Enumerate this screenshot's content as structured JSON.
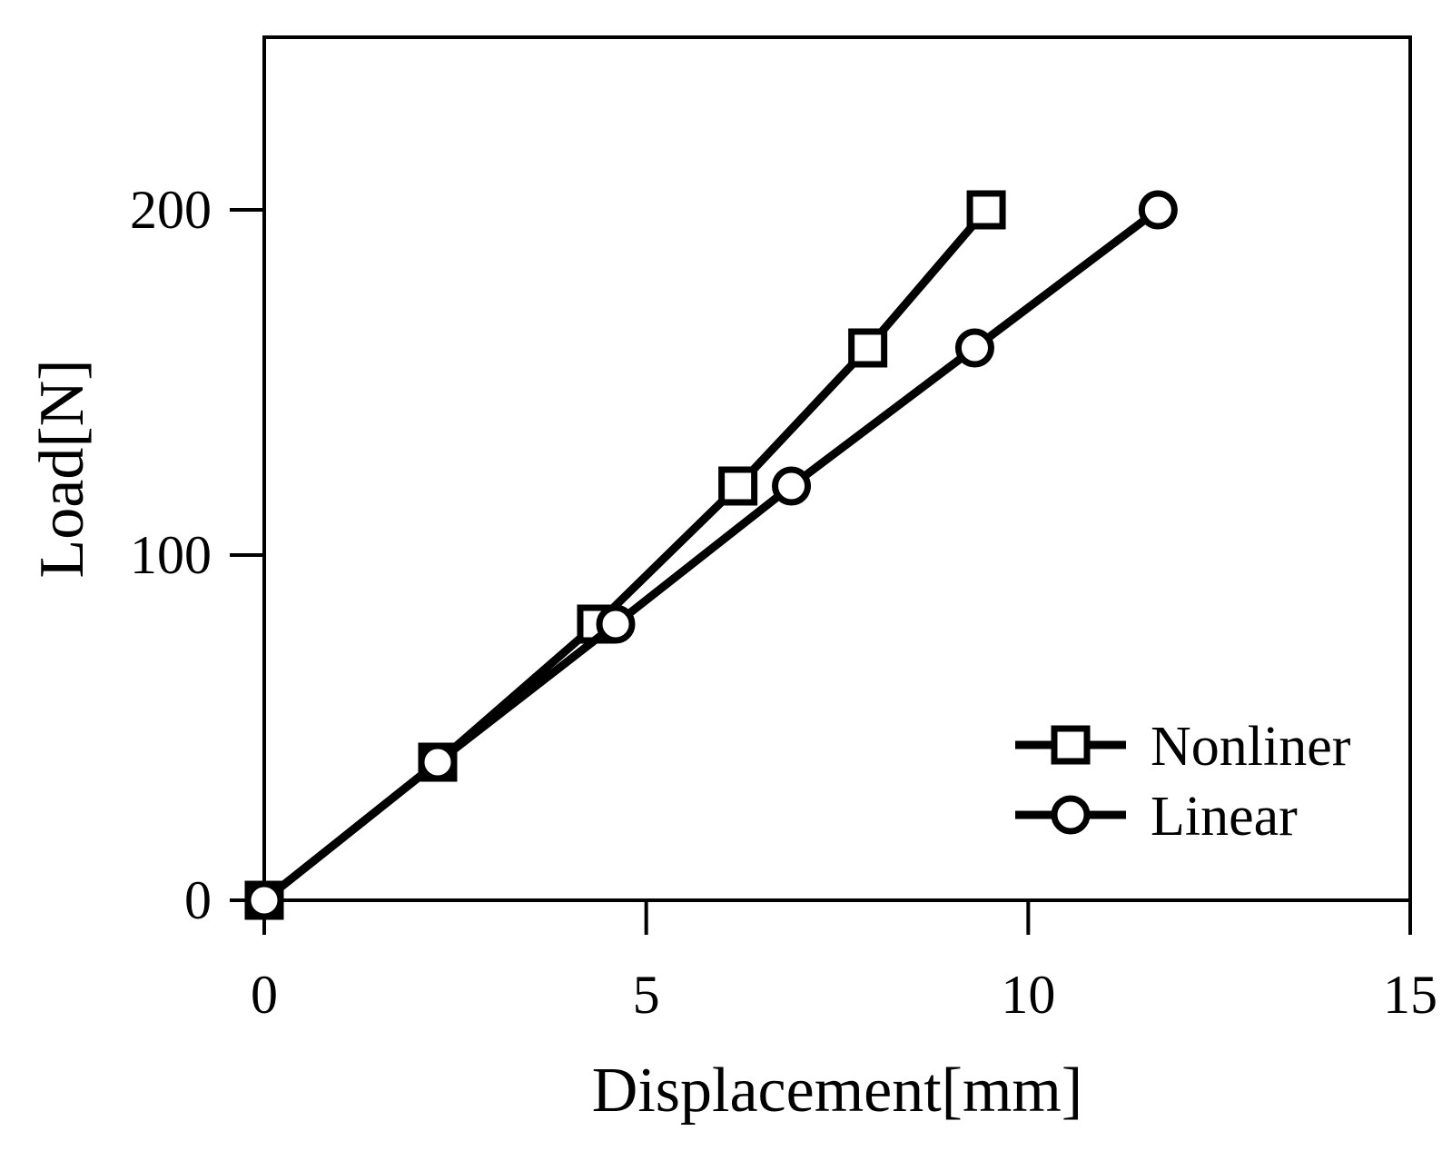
{
  "chart_data": {
    "type": "line",
    "title": "",
    "xlabel": "Displacement[mm]",
    "ylabel": "Load[N]",
    "xlim": [
      0,
      15
    ],
    "ylim": [
      0,
      250
    ],
    "xticks": [
      0,
      5,
      10,
      15
    ],
    "yticks": [
      0,
      100,
      200
    ],
    "grid": false,
    "legend_position": "bottom-right",
    "series": [
      {
        "name": "Nonliner",
        "marker": "square",
        "color": "#000000",
        "x": [
          0,
          2.27,
          4.35,
          6.2,
          7.9,
          9.45
        ],
        "y": [
          0,
          40,
          80,
          120,
          160,
          200
        ]
      },
      {
        "name": "Linear",
        "marker": "circle",
        "color": "#000000",
        "x": [
          0,
          2.27,
          4.6,
          6.9,
          9.3,
          11.7
        ],
        "y": [
          0,
          40,
          80,
          120,
          160,
          200
        ]
      }
    ]
  }
}
